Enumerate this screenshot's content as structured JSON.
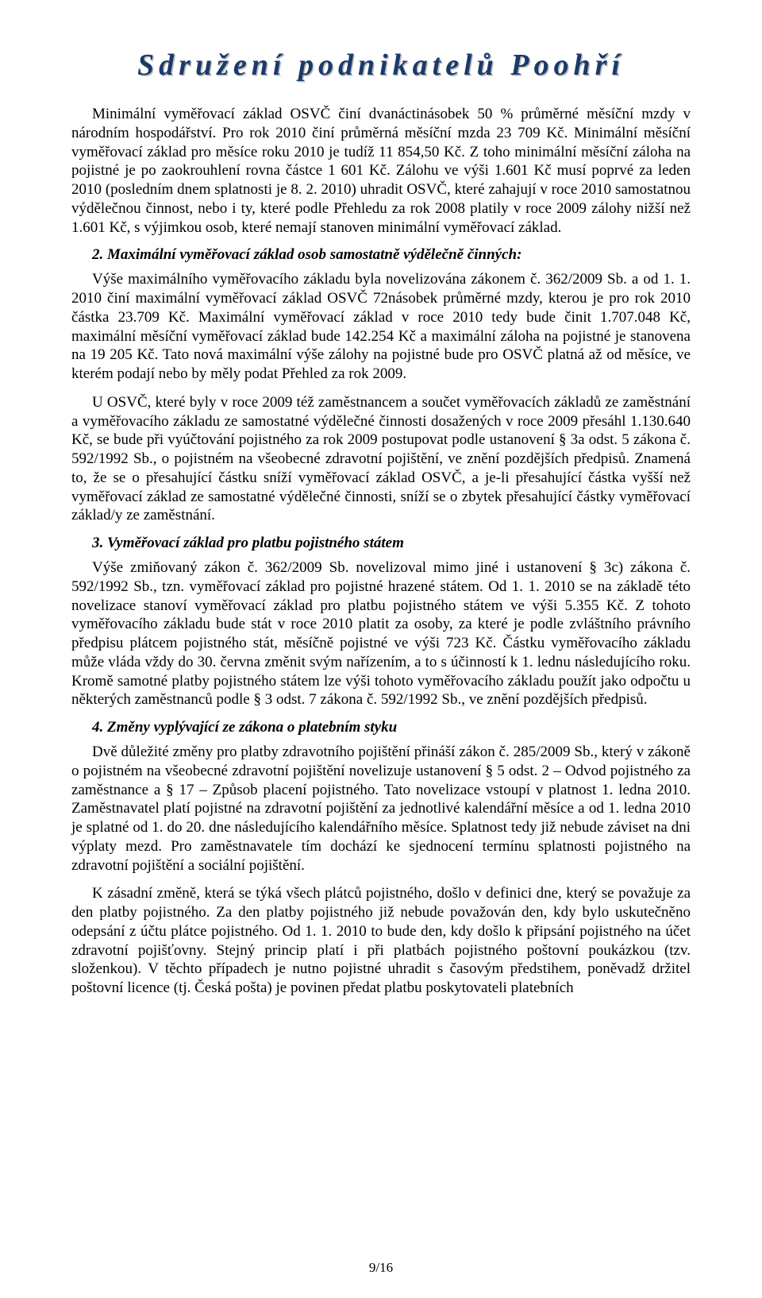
{
  "header": {
    "title": "Sdružení podnikatelů Poohří"
  },
  "body": {
    "p1": "Minimální vyměřovací základ OSVČ činí dvanáctinásobek 50 % průměrné měsíční mzdy v národním hospodářství. Pro rok 2010 činí průměrná měsíční mzda 23 709 Kč. Minimální měsíční vyměřovací základ pro měsíce roku 2010 je tudíž 11 854,50 Kč. Z toho minimální měsíční záloha na pojistné je po zaokrouhlení rovna částce 1 601 Kč. Zálohu ve výši 1.601 Kč musí poprvé za leden 2010 (posledním dnem splatnosti je 8. 2. 2010) uhradit OSVČ, které zahajují v roce 2010 samostatnou výdělečnou činnost, nebo i ty, které podle Přehledu za rok 2008 platily v roce 2009 zálohy nižší než 1.601 Kč, s výjimkou osob, které nemají stanoven minimální vyměřovací základ.",
    "s2_title": "2. Maximální vyměřovací základ osob samostatně výdělečně činných:",
    "p2a": "Výše maximálního vyměřovacího základu byla novelizována zákonem č. 362/2009 Sb. a od 1. 1. 2010 činí maximální vyměřovací základ OSVČ 72násobek průměrné mzdy, kterou je pro rok 2010 částka 23.709 Kč. Maximální vyměřovací základ v roce 2010 tedy bude činit 1.707.048 Kč, maximální měsíční vyměřovací základ bude 142.254 Kč a maximální záloha na pojistné je stanovena na 19 205 Kč. Tato nová maximální výše zálohy na pojistné bude pro OSVČ platná až od měsíce, ve kterém podají nebo by měly podat Přehled za rok 2009.",
    "p2b": "U OSVČ, které byly v roce 2009 též zaměstnancem a součet vyměřovacích základů ze zaměstnání a vyměřovacího základu ze samostatné výdělečné činnosti dosažených v roce 2009 přesáhl 1.130.640 Kč, se bude při vyúčtování pojistného za rok 2009 postupovat podle ustanovení § 3a odst. 5 zákona č. 592/1992 Sb., o pojistném na všeobecné zdravotní pojištění, ve znění pozdějších předpisů. Znamená to, že se o přesahující částku sníží vyměřovací základ OSVČ, a je-li přesahující částka vyšší než vyměřovací základ ze samostatné výdělečné činnosti, sníží se o zbytek přesahující částky vyměřovací základ/y ze zaměstnání.",
    "s3_title": "3. Vyměřovací základ pro platbu pojistného státem",
    "p3a": "Výše zmiňovaný zákon č. 362/2009 Sb. novelizoval mimo jiné i ustanovení § 3c) zákona č. 592/1992 Sb., tzn. vyměřovací základ pro pojistné hrazené státem. Od 1. 1. 2010 se na základě této novelizace stanoví vyměřovací základ pro platbu pojistného státem ve výši 5.355 Kč. Z tohoto vyměřovacího základu bude stát v roce 2010 platit za osoby, za které je podle zvláštního právního předpisu plátcem pojistného stát, měsíčně pojistné ve výši 723 Kč. Částku vyměřovacího základu může vláda vždy do 30. června změnit svým nařízením, a to s účinností k 1. lednu následujícího roku. Kromě samotné platby pojistného státem lze výši tohoto vyměřovacího základu použít jako odpočtu u některých zaměstnanců podle § 3 odst. 7 zákona č. 592/1992 Sb., ve znění pozdějších předpisů.",
    "s4_title": "4. Změny vyplývající ze zákona o platebním styku",
    "p4a": "Dvě důležité změny pro platby zdravotního pojištění přináší zákon č. 285/2009 Sb., který v zákoně o pojistném na všeobecné zdravotní pojištění novelizuje ustanovení § 5 odst. 2 – Odvod pojistného za zaměstnance a § 17 – Způsob placení pojistného. Tato novelizace vstoupí v platnost 1. ledna 2010. Zaměstnavatel platí pojistné na zdravotní pojištění za jednotlivé kalendářní měsíce a od 1. ledna 2010 je splatné od 1. do 20. dne následujícího kalendářního měsíce. Splatnost tedy již nebude záviset na dni výplaty mezd. Pro zaměstnavatele tím dochází ke sjednocení termínu splatnosti pojistného na zdravotní pojištění a sociální pojištění.",
    "p4b": "K zásadní změně, která se týká všech plátců pojistného, došlo v definici dne, který se považuje za den platby pojistného. Za den platby pojistného již nebude považován den, kdy bylo uskutečněno odepsání z účtu plátce pojistného. Od 1. 1. 2010 to bude den, kdy došlo k připsání pojistného na účet zdravotní pojišťovny. Stejný princip platí i při platbách pojistného poštovní poukázkou (tzv. složenkou). V těchto případech je nutno pojistné uhradit s časovým předstihem, poněvadž držitel poštovní licence (tj. Česká pošta) je povinen předat platbu poskytovateli platebních"
  },
  "footer": {
    "pagenum": "9/16"
  }
}
